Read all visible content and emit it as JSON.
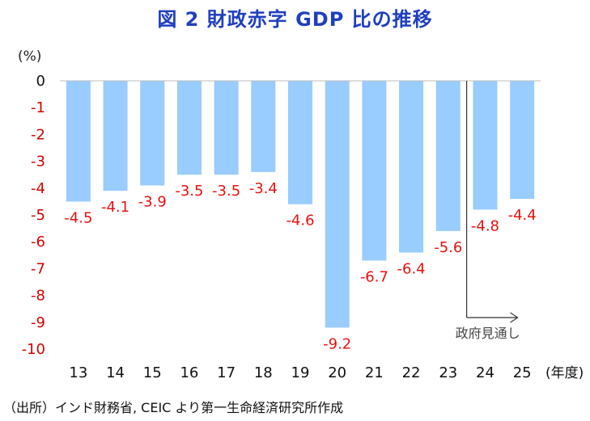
{
  "chart_data": {
    "type": "bar",
    "title": "図 2  財政赤字 GDP 比の推移",
    "ylabel": "(%)",
    "xlabel": "(年度)",
    "categories": [
      "13",
      "14",
      "15",
      "16",
      "17",
      "18",
      "19",
      "20",
      "21",
      "22",
      "23",
      "24",
      "25"
    ],
    "values": [
      -4.5,
      -4.1,
      -3.9,
      -3.5,
      -3.5,
      -3.4,
      -4.6,
      -9.2,
      -6.7,
      -6.4,
      -5.6,
      -4.8,
      -4.4
    ],
    "value_labels": [
      "-4.5",
      "-4.1",
      "-3.9",
      "-3.5",
      "-3.5",
      "-3.4",
      "-4.6",
      "-9.2",
      "-6.7",
      "-6.4",
      "-5.6",
      "-4.8",
      "-4.4"
    ],
    "yticks": [
      0,
      -1,
      -2,
      -3,
      -4,
      -5,
      -6,
      -7,
      -8,
      -9,
      -10
    ],
    "ytick_labels": [
      "0",
      "-1",
      "-2",
      "-3",
      "-4",
      "-5",
      "-6",
      "-7",
      "-8",
      "-9",
      "-10"
    ],
    "ylim": [
      -10,
      0
    ],
    "grid": false,
    "annotation": {
      "text": "政府見通し",
      "from_category": "24"
    },
    "colors": {
      "bar": "#99ccff",
      "label": "#e81010",
      "tick": "#d40000",
      "title": "#1f3fbf"
    }
  },
  "source": "（出所）インド財務省, CEIC より第一生命経済研究所作成"
}
